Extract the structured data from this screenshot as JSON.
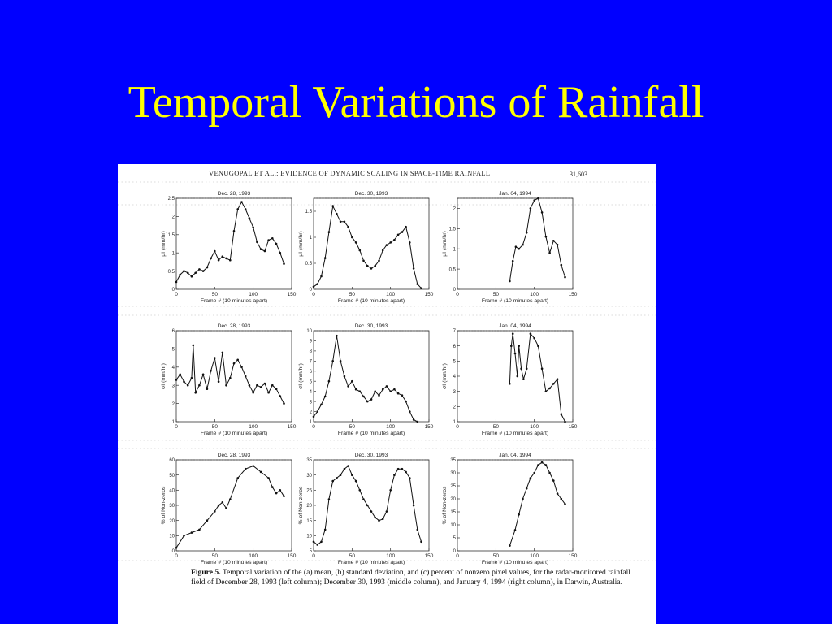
{
  "slide": {
    "title": "Temporal Variations of Rainfall",
    "background": "#0000ff",
    "title_color": "#ffff00"
  },
  "paper": {
    "header_title": "VENUGOPAL ET AL.: EVIDENCE OF DYNAMIC SCALING IN SPACE-TIME RAINFALL",
    "header_page": "31,603",
    "caption_label": "Figure 5.",
    "caption_text": "Temporal variation of the (a) mean, (b) standard deviation, and (c) percent of nonzero pixel values, for the radar-monitored rainfall field of December 28, 1993 (left column); December 30, 1993 (middle column), and January 4, 1994 (right column), in Darwin, Australia."
  },
  "chart_data": [
    {
      "type": "line",
      "title": "Dec. 28, 1993",
      "xlabel": "Frame # (10 minutes apart)",
      "ylabel": "μI (mm/hr)",
      "xlim": [
        0,
        150
      ],
      "ylim": [
        0,
        2.5
      ],
      "xticks": [
        0,
        50,
        100,
        150
      ],
      "yticks": [
        0,
        0.5,
        1,
        1.5,
        2,
        2.5
      ],
      "x": [
        0,
        5,
        10,
        15,
        20,
        25,
        30,
        35,
        40,
        45,
        50,
        55,
        60,
        65,
        70,
        75,
        80,
        85,
        90,
        95,
        100,
        105,
        110,
        115,
        120,
        125,
        130,
        135,
        140
      ],
      "values": [
        0.2,
        0.4,
        0.5,
        0.45,
        0.35,
        0.45,
        0.55,
        0.5,
        0.6,
        0.85,
        1.05,
        0.8,
        0.9,
        0.85,
        0.8,
        1.6,
        2.2,
        2.4,
        2.2,
        1.95,
        1.7,
        1.3,
        1.1,
        1.05,
        1.35,
        1.4,
        1.25,
        1.0,
        0.7
      ]
    },
    {
      "type": "line",
      "title": "Dec. 30, 1993",
      "xlabel": "Frame # (10 minutes apart)",
      "ylabel": "μI (mm/hr)",
      "xlim": [
        0,
        150
      ],
      "ylim": [
        0,
        1.75
      ],
      "xticks": [
        0,
        50,
        100,
        150
      ],
      "yticks": [
        0,
        0.5,
        1,
        1.5
      ],
      "x": [
        0,
        5,
        10,
        15,
        20,
        25,
        30,
        35,
        40,
        45,
        50,
        55,
        60,
        65,
        70,
        75,
        80,
        85,
        90,
        95,
        100,
        105,
        110,
        115,
        120,
        125,
        130,
        135,
        140
      ],
      "values": [
        0.05,
        0.1,
        0.25,
        0.6,
        1.1,
        1.6,
        1.45,
        1.3,
        1.3,
        1.2,
        1.0,
        0.9,
        0.75,
        0.55,
        0.45,
        0.4,
        0.45,
        0.55,
        0.75,
        0.85,
        0.9,
        0.95,
        1.05,
        1.1,
        1.2,
        0.9,
        0.4,
        0.1,
        0.02
      ]
    },
    {
      "type": "line",
      "title": "Jan. 04, 1994",
      "xlabel": "Frame # (10 minutes apart)",
      "ylabel": "μI (mm/hr)",
      "xlim": [
        0,
        150
      ],
      "ylim": [
        0,
        2.25
      ],
      "xticks": [
        0,
        50,
        100,
        150
      ],
      "yticks": [
        0,
        0.5,
        1,
        1.5,
        2
      ],
      "x": [
        68,
        72,
        76,
        80,
        85,
        90,
        95,
        100,
        105,
        110,
        115,
        120,
        125,
        130,
        135,
        140
      ],
      "values": [
        0.2,
        0.7,
        1.05,
        1.0,
        1.1,
        1.4,
        2.0,
        2.2,
        2.25,
        1.9,
        1.3,
        0.9,
        1.2,
        1.1,
        0.6,
        0.3
      ]
    },
    {
      "type": "line",
      "title": "Dec. 28, 1993",
      "xlabel": "Frame # (10 minutes apart)",
      "ylabel": "σI (mm/hr)",
      "xlim": [
        0,
        150
      ],
      "ylim": [
        1,
        6
      ],
      "xticks": [
        0,
        50,
        100,
        150
      ],
      "yticks": [
        1,
        2,
        3,
        4,
        5,
        6
      ],
      "x": [
        0,
        5,
        10,
        15,
        20,
        22,
        25,
        30,
        35,
        40,
        45,
        50,
        55,
        60,
        65,
        70,
        75,
        80,
        85,
        90,
        95,
        100,
        105,
        110,
        115,
        120,
        125,
        130,
        135,
        140
      ],
      "values": [
        3.3,
        3.6,
        3.2,
        3.0,
        3.4,
        5.2,
        2.6,
        3.0,
        3.6,
        2.8,
        3.8,
        4.5,
        3.2,
        4.8,
        3.0,
        3.4,
        4.2,
        4.4,
        4.0,
        3.5,
        3.0,
        2.6,
        3.0,
        2.9,
        3.1,
        2.6,
        3.0,
        2.8,
        2.4,
        2.0
      ]
    },
    {
      "type": "line",
      "title": "Dec. 30, 1993",
      "xlabel": "Frame # (10 minutes apart)",
      "ylabel": "σI (mm/hr)",
      "xlim": [
        0,
        150
      ],
      "ylim": [
        1,
        10
      ],
      "xticks": [
        0,
        50,
        100,
        150
      ],
      "yticks": [
        1,
        2,
        3,
        4,
        5,
        6,
        7,
        8,
        9,
        10
      ],
      "x": [
        0,
        5,
        10,
        15,
        20,
        25,
        30,
        35,
        40,
        45,
        50,
        55,
        60,
        65,
        70,
        75,
        80,
        85,
        90,
        95,
        100,
        105,
        110,
        115,
        120,
        125,
        130,
        135
      ],
      "values": [
        1.5,
        2.0,
        2.7,
        3.5,
        5.0,
        7.0,
        9.5,
        7.0,
        5.5,
        4.5,
        5.0,
        4.2,
        4.0,
        3.5,
        3.0,
        3.2,
        4.0,
        3.6,
        4.2,
        4.5,
        4.0,
        4.2,
        3.8,
        3.6,
        3.0,
        2.0,
        1.2,
        1.0
      ]
    },
    {
      "type": "line",
      "title": "Jan. 04, 1994",
      "xlabel": "Frame # (10 minutes apart)",
      "ylabel": "σI (mm/hr)",
      "xlim": [
        0,
        150
      ],
      "ylim": [
        1,
        7
      ],
      "xticks": [
        0,
        50,
        100,
        150
      ],
      "yticks": [
        1,
        2,
        3,
        4,
        5,
        6,
        7
      ],
      "x": [
        68,
        70,
        72,
        75,
        78,
        80,
        83,
        86,
        90,
        95,
        100,
        105,
        110,
        115,
        120,
        125,
        130,
        135,
        140
      ],
      "values": [
        3.5,
        6.0,
        6.8,
        5.5,
        4.0,
        6.0,
        4.5,
        3.8,
        4.5,
        6.8,
        6.5,
        6.0,
        4.5,
        3.0,
        3.2,
        3.5,
        3.8,
        1.5,
        1.0
      ]
    },
    {
      "type": "line",
      "title": "Dec. 28, 1993",
      "xlabel": "Frame # (10 minutes apart)",
      "ylabel": "% of Non-zeros",
      "xlim": [
        0,
        150
      ],
      "ylim": [
        0,
        60
      ],
      "xticks": [
        0,
        50,
        100,
        150
      ],
      "yticks": [
        0,
        10,
        20,
        30,
        40,
        50,
        60
      ],
      "x": [
        0,
        10,
        20,
        30,
        40,
        50,
        55,
        60,
        65,
        70,
        80,
        90,
        100,
        110,
        120,
        125,
        130,
        135,
        140
      ],
      "values": [
        2,
        10,
        12,
        14,
        20,
        26,
        30,
        32,
        28,
        34,
        48,
        54,
        56,
        52,
        48,
        42,
        38,
        40,
        36
      ]
    },
    {
      "type": "line",
      "title": "Dec. 30, 1993",
      "xlabel": "Frame # (10 minutes apart)",
      "ylabel": "% of Non-zeros",
      "xlim": [
        0,
        150
      ],
      "ylim": [
        5,
        35
      ],
      "xticks": [
        0,
        50,
        100,
        150
      ],
      "yticks": [
        5,
        10,
        15,
        20,
        25,
        30,
        35
      ],
      "x": [
        0,
        5,
        10,
        15,
        20,
        25,
        30,
        35,
        40,
        45,
        50,
        55,
        60,
        65,
        70,
        75,
        80,
        85,
        90,
        95,
        100,
        105,
        110,
        115,
        120,
        125,
        130,
        135,
        140
      ],
      "values": [
        8,
        7,
        8,
        12,
        22,
        28,
        29,
        30,
        32,
        33,
        30,
        28,
        25,
        22,
        20,
        18,
        16,
        15,
        15.5,
        18,
        25,
        30,
        32,
        32,
        31,
        29,
        20,
        12,
        8
      ]
    },
    {
      "type": "line",
      "title": "Jan. 04, 1994",
      "xlabel": "Frame # (10 minutes apart)",
      "ylabel": "% of Non-zeros",
      "xlim": [
        0,
        150
      ],
      "ylim": [
        0,
        35
      ],
      "xticks": [
        0,
        50,
        100,
        150
      ],
      "yticks": [
        0,
        5,
        10,
        15,
        20,
        25,
        30,
        35
      ],
      "x": [
        68,
        75,
        80,
        85,
        90,
        95,
        100,
        105,
        110,
        115,
        120,
        125,
        130,
        135,
        140
      ],
      "values": [
        2,
        8,
        14,
        20,
        24,
        28,
        30,
        33,
        34,
        33,
        30,
        27,
        22,
        20,
        18
      ]
    }
  ]
}
